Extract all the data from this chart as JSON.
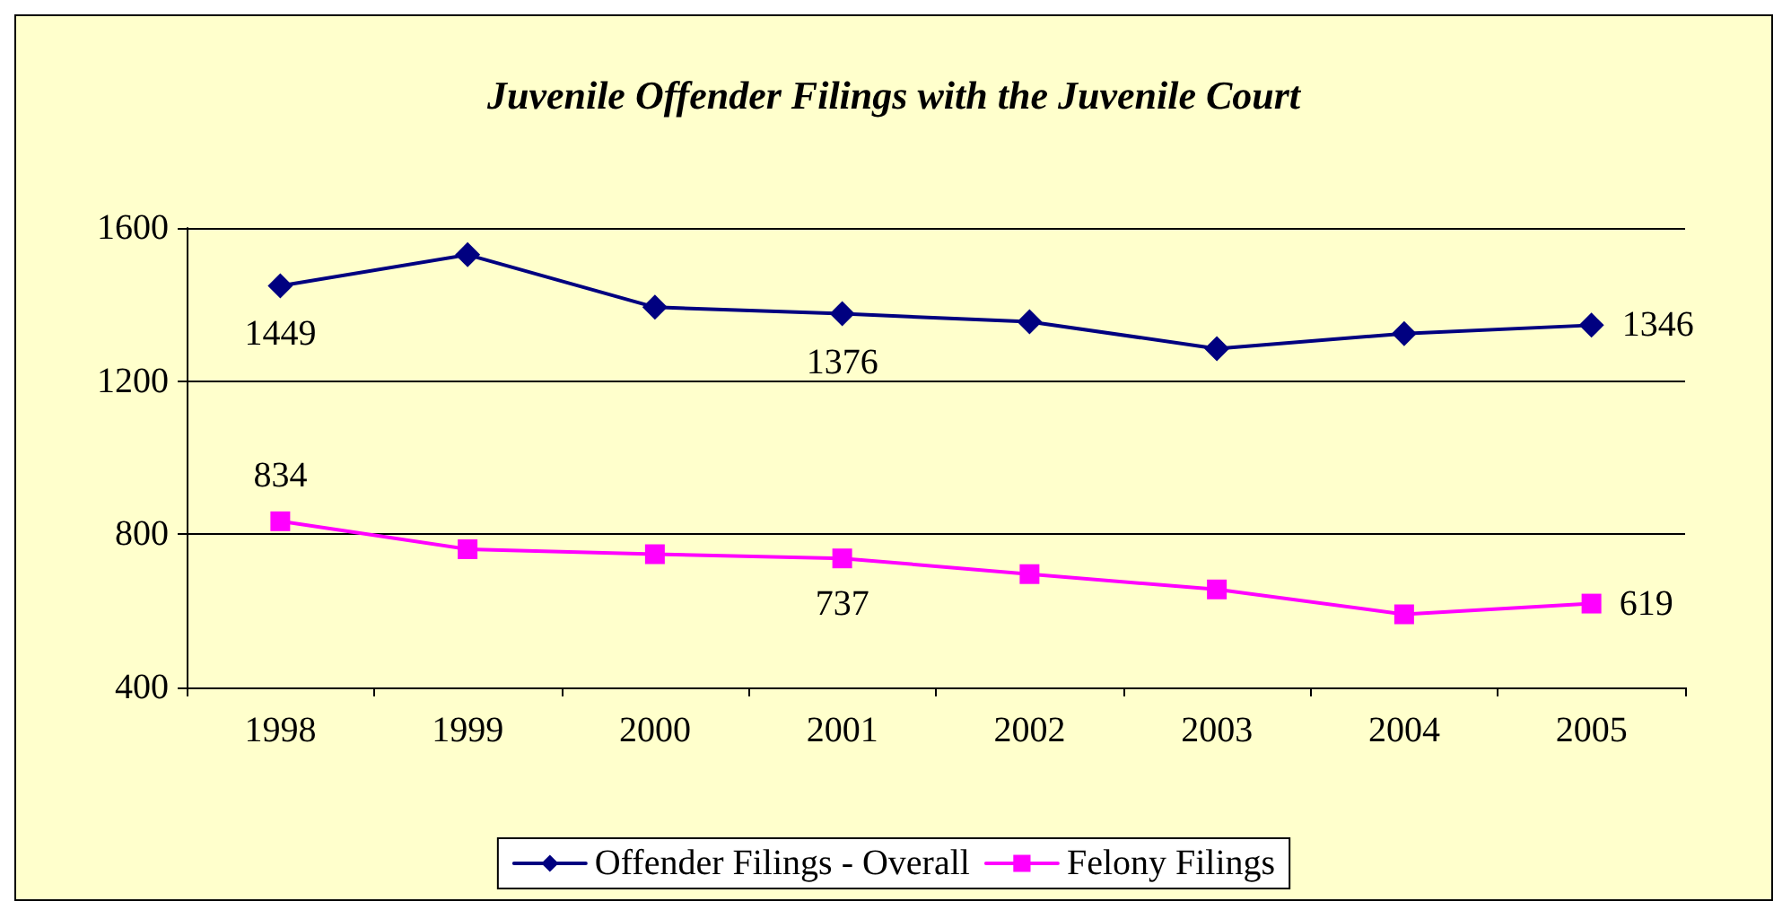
{
  "chart_data": {
    "type": "line",
    "title": "Juvenile Offender Filings with the Juvenile Court",
    "categories": [
      "1998",
      "1999",
      "2000",
      "2001",
      "2002",
      "2003",
      "2004",
      "2005"
    ],
    "series": [
      {
        "name": "Offender Filings - Overall",
        "color": "#000080",
        "marker": "diamond",
        "values": [
          1449,
          1530,
          1393,
          1376,
          1355,
          1285,
          1324,
          1346
        ],
        "value_labels": [
          "1449",
          null,
          null,
          "1376",
          null,
          null,
          null,
          "1346"
        ]
      },
      {
        "name": "Felony Filings",
        "color": "#ff00ff",
        "marker": "square",
        "values": [
          834,
          761,
          748,
          737,
          696,
          656,
          591,
          619
        ],
        "value_labels": [
          "834",
          null,
          null,
          "737",
          null,
          null,
          null,
          "619"
        ]
      }
    ],
    "ylim": [
      400,
      1600
    ],
    "yticks": [
      400,
      800,
      1200,
      1600
    ],
    "grid": "y",
    "legend": "bottom"
  }
}
